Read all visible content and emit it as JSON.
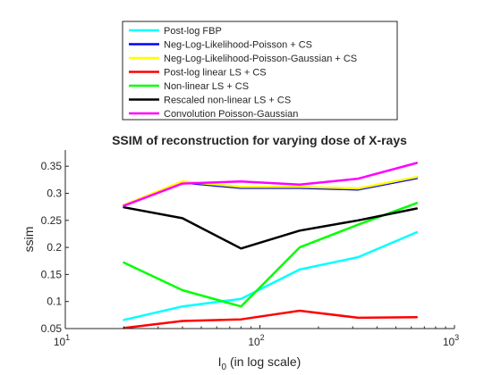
{
  "chart_data": {
    "type": "line",
    "title": "SSIM of reconstruction for varying dose of X-rays",
    "xlabel": "I",
    "xlabel_sub": "0",
    "xlabel_suffix": " (in log scale)",
    "ylabel": "ssim",
    "xscale": "log",
    "xlim": [
      10,
      1000
    ],
    "ylim": [
      0.05,
      0.38
    ],
    "x_ticks": [
      {
        "value": 10,
        "base": "10",
        "exp": "1"
      },
      {
        "value": 100,
        "base": "10",
        "exp": "2"
      },
      {
        "value": 1000,
        "base": "10",
        "exp": "3"
      }
    ],
    "y_ticks": [
      {
        "value": 0.05,
        "label": "0.05"
      },
      {
        "value": 0.1,
        "label": "0.1"
      },
      {
        "value": 0.15,
        "label": "0.15"
      },
      {
        "value": 0.2,
        "label": "0.2"
      },
      {
        "value": 0.25,
        "label": "0.25"
      },
      {
        "value": 0.3,
        "label": "0.3"
      },
      {
        "value": 0.35,
        "label": "0.35"
      }
    ],
    "grid": false,
    "legend_position": "top-outside",
    "x": [
      20,
      40,
      80,
      160,
      320,
      640
    ],
    "series": [
      {
        "name": "Post-log FBP",
        "color": "#00ffff",
        "values": [
          0.066,
          0.091,
          0.105,
          0.159,
          0.182,
          0.228
        ]
      },
      {
        "name": "Neg-Log-Likelihood-Poisson + CS",
        "color": "#0000ff",
        "values": [
          0.278,
          0.32,
          0.31,
          0.31,
          0.307,
          0.328
        ]
      },
      {
        "name": "Neg-Log-Likelihood-Poisson-Gaussian + CS",
        "color": "#ffff00",
        "values": [
          0.278,
          0.322,
          0.312,
          0.312,
          0.309,
          0.33
        ]
      },
      {
        "name": "Post-log linear LS + CS",
        "color": "#ff0000",
        "values": [
          0.051,
          0.064,
          0.067,
          0.083,
          0.07,
          0.071
        ]
      },
      {
        "name": "Non-linear LS + CS",
        "color": "#00ff00",
        "values": [
          0.172,
          0.121,
          0.091,
          0.2,
          0.242,
          0.282
        ]
      },
      {
        "name": "Rescaled non-linear LS + CS",
        "color": "#000000",
        "values": [
          0.274,
          0.254,
          0.198,
          0.231,
          0.25,
          0.272
        ]
      },
      {
        "name": "Convolution Poisson-Gaussian",
        "color": "#ff00ff",
        "values": [
          0.277,
          0.318,
          0.322,
          0.316,
          0.327,
          0.356
        ]
      }
    ]
  }
}
